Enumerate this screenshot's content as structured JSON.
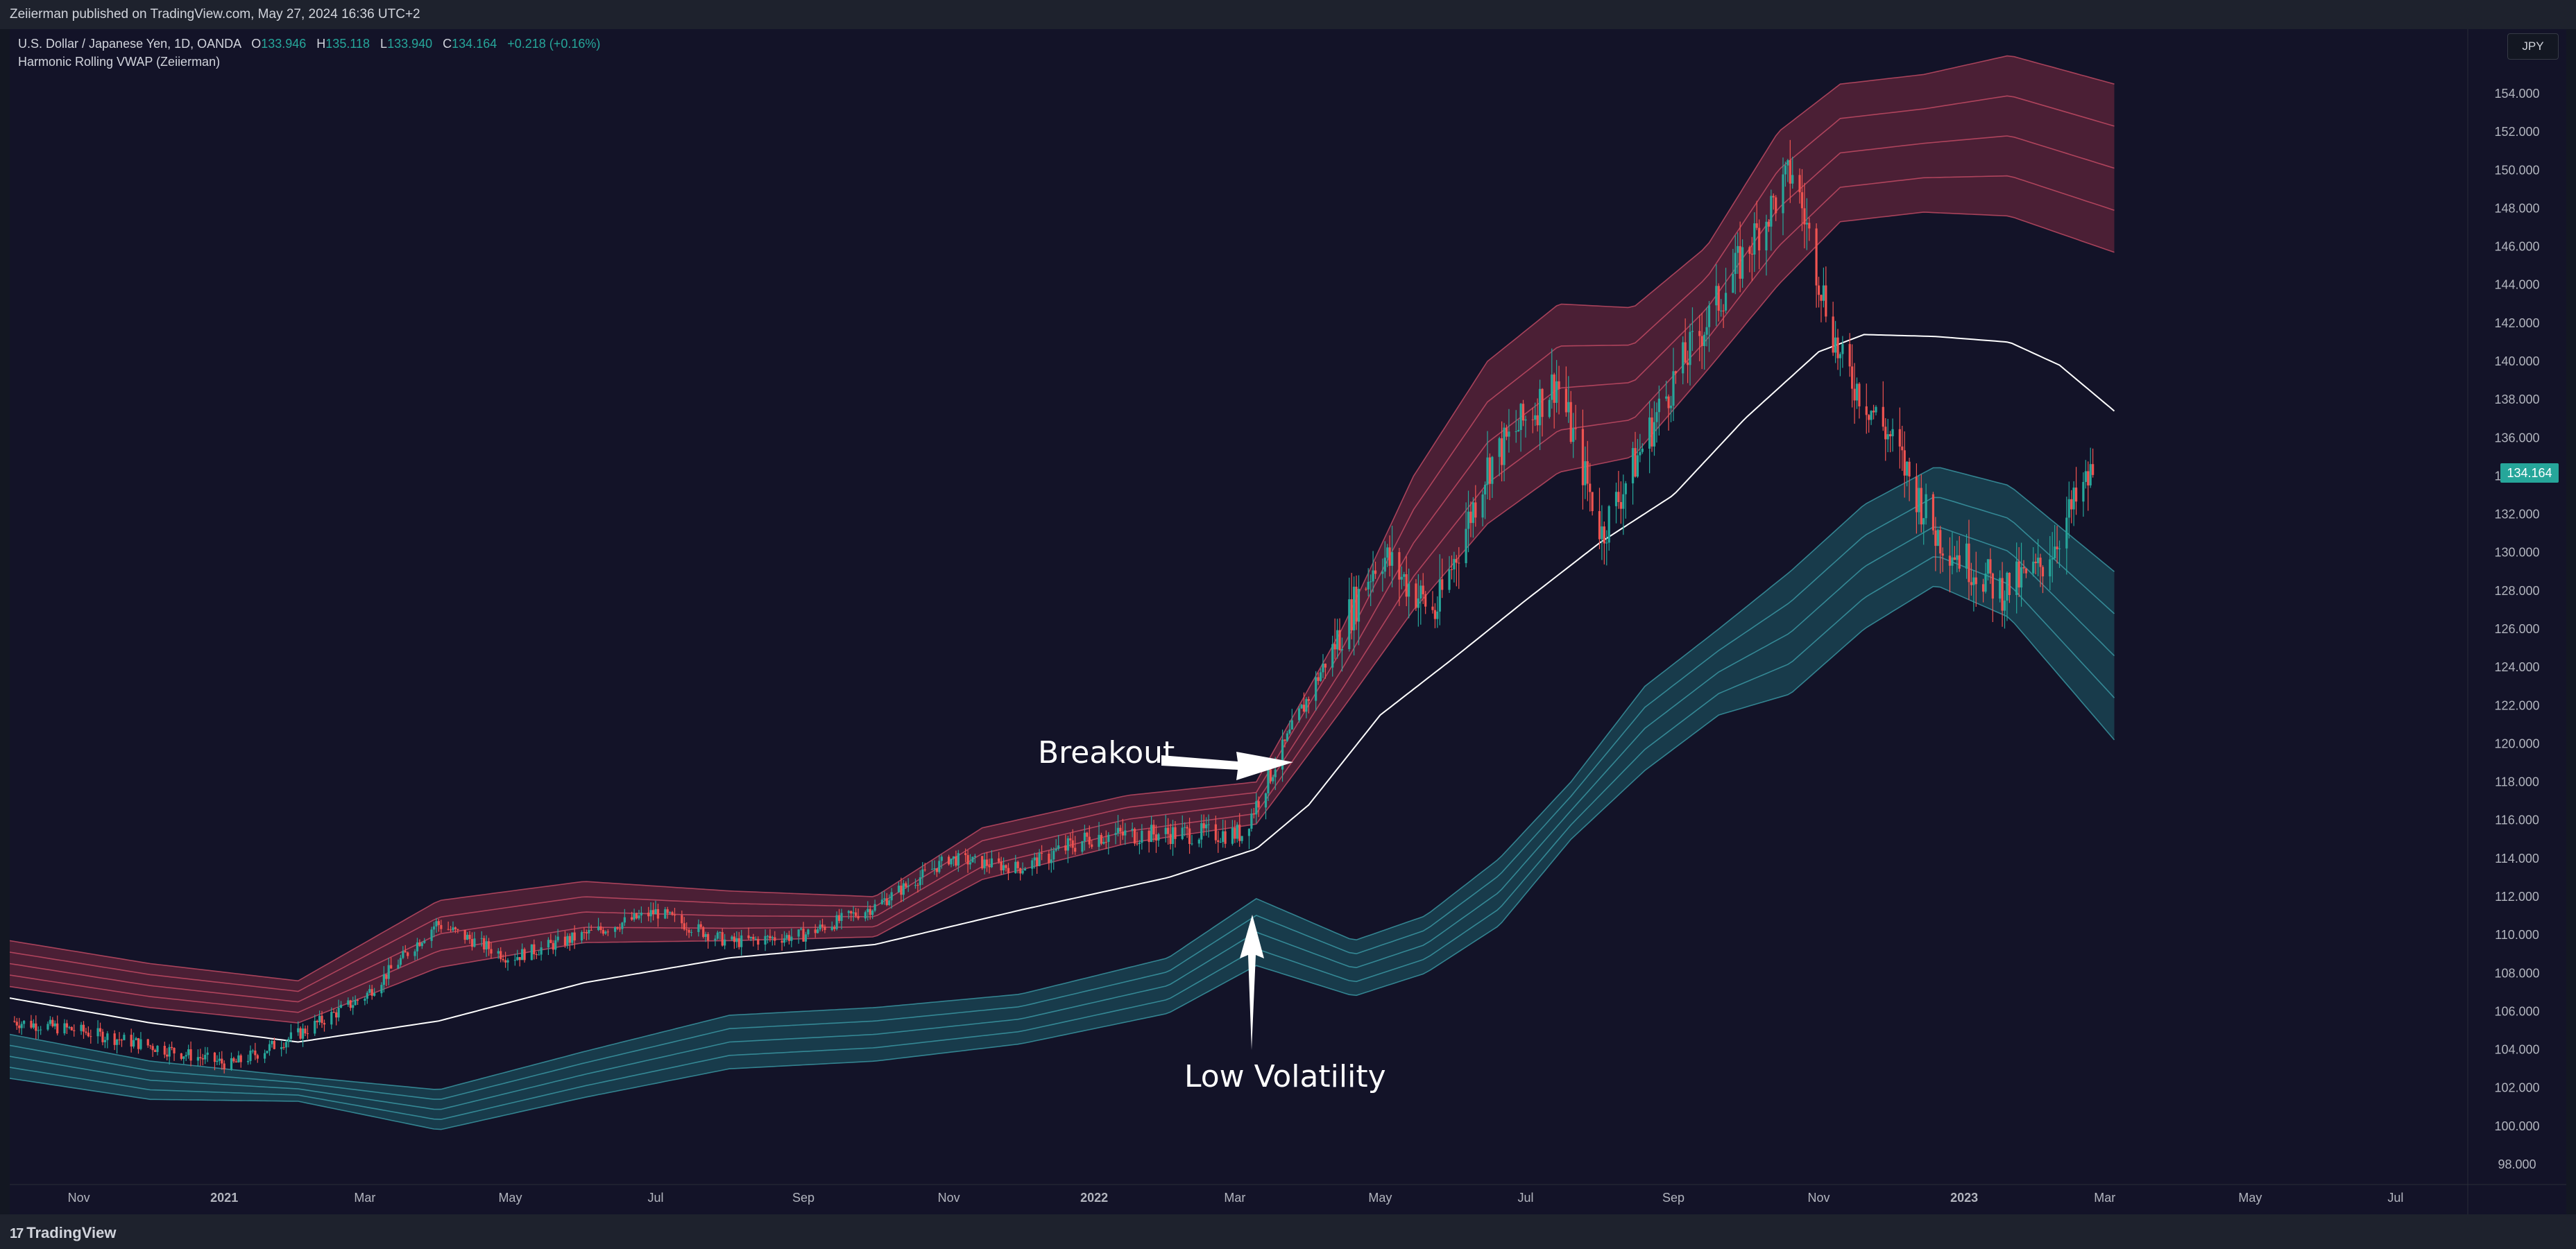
{
  "publisher_line": "Zeiierman published on TradingView.com, May 27, 2024 16:36 UTC+2",
  "legend": {
    "symbol": "U.S. Dollar / Japanese Yen, 1D, OANDA",
    "o_label": "O",
    "o": "133.946",
    "h_label": "H",
    "h": "135.118",
    "l_label": "L",
    "l": "133.940",
    "c_label": "C",
    "c": "134.164",
    "change": "+0.218 (+0.16%)",
    "indicator": "Harmonic Rolling VWAP (Zeiierman)"
  },
  "currency_button": "JPY",
  "last_price_badge": "134.164",
  "footer": {
    "logo_text": "TradingView",
    "logo_mark": "17"
  },
  "annotations": {
    "breakout": "Breakout",
    "low_volatility": "Low Volatility"
  },
  "colors": {
    "background": "#131328",
    "up": "#26a69a",
    "down": "#ef5350",
    "upper_band": "#7a2a40",
    "lower_band": "#1d5c68",
    "vwap": "#ffffff"
  },
  "chart_data": {
    "type": "line",
    "title": "U.S. Dollar / Japanese Yen, 1D, OANDA",
    "ylim": [
      98,
      156
    ],
    "yticks": [
      98,
      100,
      102,
      104,
      106,
      108,
      110,
      112,
      114,
      116,
      118,
      120,
      122,
      124,
      126,
      128,
      130,
      132,
      134,
      136,
      138,
      140,
      142,
      144,
      146,
      148,
      150,
      152,
      154
    ],
    "ytick_labels": [
      "98.000",
      "100.000",
      "102.000",
      "104.000",
      "106.000",
      "108.000",
      "110.000",
      "112.000",
      "114.000",
      "116.000",
      "118.000",
      "120.000",
      "122.000",
      "124.000",
      "126.000",
      "128.000",
      "130.000",
      "132.000",
      "134.000",
      "136.000",
      "138.000",
      "140.000",
      "142.000",
      "144.000",
      "146.000",
      "148.000",
      "150.000",
      "152.000",
      "154.000"
    ],
    "x_range": [
      "2020-10-03",
      "2023-07-31"
    ],
    "xticks": [
      {
        "label": "Nov",
        "date": "2020-11-01"
      },
      {
        "label": "2021",
        "date": "2021-01-01"
      },
      {
        "label": "Mar",
        "date": "2021-03-01"
      },
      {
        "label": "May",
        "date": "2021-05-01"
      },
      {
        "label": "Jul",
        "date": "2021-07-01"
      },
      {
        "label": "Sep",
        "date": "2021-09-01"
      },
      {
        "label": "Nov",
        "date": "2021-11-01"
      },
      {
        "label": "2022",
        "date": "2022-01-01"
      },
      {
        "label": "Mar",
        "date": "2022-03-01"
      },
      {
        "label": "May",
        "date": "2022-05-01"
      },
      {
        "label": "Jul",
        "date": "2022-07-01"
      },
      {
        "label": "Sep",
        "date": "2022-09-01"
      },
      {
        "label": "Nov",
        "date": "2022-11-01"
      },
      {
        "label": "2023",
        "date": "2023-01-01"
      },
      {
        "label": "Mar",
        "date": "2023-03-01"
      },
      {
        "label": "May",
        "date": "2023-05-01"
      },
      {
        "label": "Jul",
        "date": "2023-07-01"
      }
    ],
    "last_price": 134.164,
    "price_path": [
      [
        "2020-10-03",
        105.5
      ],
      [
        "2020-11-01",
        105.0
      ],
      [
        "2020-12-01",
        104.2
      ],
      [
        "2021-01-04",
        103.2
      ],
      [
        "2021-02-01",
        104.8
      ],
      [
        "2021-03-01",
        106.8
      ],
      [
        "2021-03-31",
        110.6
      ],
      [
        "2021-05-01",
        108.8
      ],
      [
        "2021-06-01",
        110.0
      ],
      [
        "2021-07-01",
        111.2
      ],
      [
        "2021-08-01",
        109.6
      ],
      [
        "2021-09-01",
        110.0
      ],
      [
        "2021-10-01",
        111.5
      ],
      [
        "2021-11-01",
        114.0
      ],
      [
        "2021-12-01",
        113.5
      ],
      [
        "2022-01-01",
        115.2
      ],
      [
        "2022-02-01",
        115.3
      ],
      [
        "2022-03-04",
        115.3
      ],
      [
        "2022-04-01",
        122.5
      ],
      [
        "2022-05-01",
        130.0
      ],
      [
        "2022-05-24",
        126.8
      ],
      [
        "2022-06-15",
        134.5
      ],
      [
        "2022-07-14",
        139.0
      ],
      [
        "2022-08-02",
        131.0
      ],
      [
        "2022-09-01",
        139.0
      ],
      [
        "2022-10-21",
        150.0
      ],
      [
        "2022-11-10",
        140.0
      ],
      [
        "2022-12-01",
        136.0
      ],
      [
        "2022-12-20",
        131.0
      ],
      [
        "2023-01-16",
        128.0
      ],
      [
        "2023-02-01",
        129.0
      ],
      [
        "2023-02-24",
        134.2
      ]
    ],
    "vwap": [
      [
        "2020-10-03",
        106.7
      ],
      [
        "2020-12-01",
        105.4
      ],
      [
        "2021-02-01",
        104.4
      ],
      [
        "2021-04-01",
        105.5
      ],
      [
        "2021-06-01",
        107.5
      ],
      [
        "2021-08-01",
        108.8
      ],
      [
        "2021-10-01",
        109.5
      ],
      [
        "2021-12-01",
        111.3
      ],
      [
        "2022-02-01",
        113.0
      ],
      [
        "2022-03-10",
        114.5
      ],
      [
        "2022-04-01",
        116.8
      ],
      [
        "2022-05-01",
        121.5
      ],
      [
        "2022-06-01",
        124.5
      ],
      [
        "2022-07-01",
        127.5
      ],
      [
        "2022-08-01",
        130.5
      ],
      [
        "2022-09-01",
        133.0
      ],
      [
        "2022-10-01",
        137.0
      ],
      [
        "2022-11-01",
        140.5
      ],
      [
        "2022-11-20",
        141.4
      ],
      [
        "2022-12-20",
        141.3
      ],
      [
        "2023-01-20",
        141.0
      ],
      [
        "2023-02-10",
        139.8
      ],
      [
        "2023-03-05",
        137.4
      ]
    ],
    "upper_band_outer": [
      [
        "2020-10-03",
        109.7
      ],
      [
        "2020-12-01",
        108.5
      ],
      [
        "2021-02-01",
        107.6
      ],
      [
        "2021-04-01",
        111.8
      ],
      [
        "2021-06-01",
        112.8
      ],
      [
        "2021-08-01",
        112.3
      ],
      [
        "2021-10-01",
        112.0
      ],
      [
        "2021-11-15",
        115.6
      ],
      [
        "2022-01-15",
        117.3
      ],
      [
        "2022-03-10",
        118.0
      ],
      [
        "2022-04-15",
        126.0
      ],
      [
        "2022-05-15",
        134.0
      ],
      [
        "2022-06-15",
        140.0
      ],
      [
        "2022-07-15",
        143.0
      ],
      [
        "2022-08-15",
        142.8
      ],
      [
        "2022-09-15",
        146.0
      ],
      [
        "2022-10-15",
        152.0
      ],
      [
        "2022-11-10",
        154.5
      ],
      [
        "2022-12-15",
        155.0
      ],
      [
        "2023-01-20",
        156.0
      ],
      [
        "2023-03-05",
        154.5
      ]
    ],
    "upper_band_inner": [
      [
        "2020-10-03",
        107.3
      ],
      [
        "2020-12-01",
        106.2
      ],
      [
        "2021-02-01",
        105.4
      ],
      [
        "2021-04-01",
        108.3
      ],
      [
        "2021-06-01",
        109.6
      ],
      [
        "2021-08-01",
        109.7
      ],
      [
        "2021-10-01",
        109.9
      ],
      [
        "2021-11-15",
        112.9
      ],
      [
        "2022-01-15",
        114.8
      ],
      [
        "2022-03-10",
        115.8
      ],
      [
        "2022-04-15",
        121.8
      ],
      [
        "2022-05-15",
        127.0
      ],
      [
        "2022-06-15",
        131.5
      ],
      [
        "2022-07-15",
        134.2
      ],
      [
        "2022-08-15",
        135.0
      ],
      [
        "2022-09-15",
        139.5
      ],
      [
        "2022-10-15",
        144.0
      ],
      [
        "2022-11-10",
        147.3
      ],
      [
        "2022-12-15",
        147.8
      ],
      [
        "2023-01-20",
        147.6
      ],
      [
        "2023-03-05",
        145.7
      ]
    ],
    "lower_band_inner": [
      [
        "2020-10-03",
        104.8
      ],
      [
        "2020-12-01",
        103.4
      ],
      [
        "2021-02-01",
        102.6
      ],
      [
        "2021-04-01",
        101.9
      ],
      [
        "2021-06-01",
        103.9
      ],
      [
        "2021-08-01",
        105.8
      ],
      [
        "2021-10-01",
        106.2
      ],
      [
        "2021-12-01",
        106.9
      ],
      [
        "2022-02-01",
        108.8
      ],
      [
        "2022-03-10",
        111.9
      ],
      [
        "2022-04-20",
        109.7
      ],
      [
        "2022-05-20",
        111.0
      ],
      [
        "2022-06-20",
        114.0
      ],
      [
        "2022-07-20",
        118.0
      ],
      [
        "2022-08-20",
        123.0
      ],
      [
        "2022-09-20",
        126.0
      ],
      [
        "2022-10-20",
        129.0
      ],
      [
        "2022-11-20",
        132.5
      ],
      [
        "2022-12-20",
        134.5
      ],
      [
        "2023-01-20",
        133.5
      ],
      [
        "2023-03-05",
        129.0
      ]
    ],
    "lower_band_outer": [
      [
        "2020-10-03",
        102.5
      ],
      [
        "2020-12-01",
        101.4
      ],
      [
        "2021-02-01",
        101.3
      ],
      [
        "2021-04-01",
        99.8
      ],
      [
        "2021-06-01",
        101.5
      ],
      [
        "2021-08-01",
        103.0
      ],
      [
        "2021-10-01",
        103.4
      ],
      [
        "2021-12-01",
        104.3
      ],
      [
        "2022-02-01",
        105.9
      ],
      [
        "2022-03-10",
        108.4
      ],
      [
        "2022-04-20",
        106.8
      ],
      [
        "2022-05-20",
        108.0
      ],
      [
        "2022-06-20",
        110.5
      ],
      [
        "2022-07-20",
        115.0
      ],
      [
        "2022-08-20",
        118.6
      ],
      [
        "2022-09-20",
        121.5
      ],
      [
        "2022-10-20",
        122.6
      ],
      [
        "2022-11-20",
        126.0
      ],
      [
        "2022-12-20",
        128.3
      ],
      [
        "2023-01-20",
        126.6
      ],
      [
        "2023-03-05",
        120.2
      ]
    ],
    "grid": false,
    "legend_position": "top-left"
  }
}
